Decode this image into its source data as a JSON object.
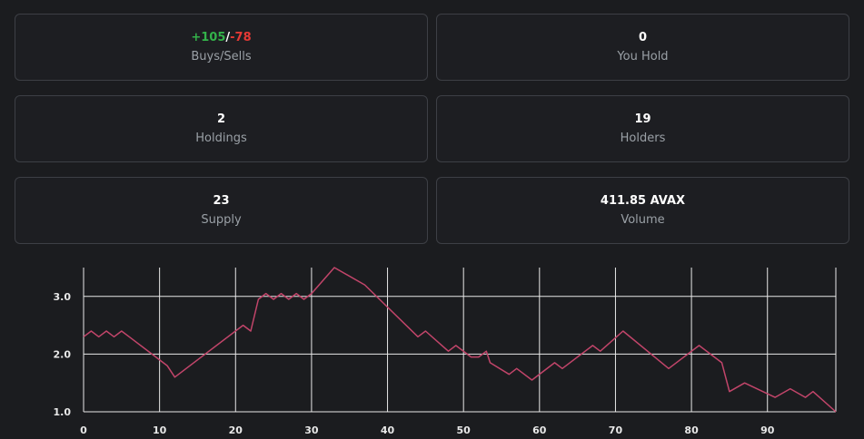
{
  "stats": {
    "trades": {
      "buys": "+105",
      "separator": "/",
      "sells": "-78",
      "label": "Buys/Sells"
    },
    "you_hold": {
      "value": "0",
      "label": "You Hold"
    },
    "holdings": {
      "value": "2",
      "label": "Holdings"
    },
    "holders": {
      "value": "19",
      "label": "Holders"
    },
    "supply": {
      "value": "23",
      "label": "Supply"
    },
    "volume": {
      "value": "411.85 AVAX",
      "label": "Volume"
    }
  },
  "colors": {
    "buy": "#33b24a",
    "sell": "#e53935",
    "line": "#c2456a",
    "grid": "#e8e8e8"
  },
  "chart_data": {
    "type": "line",
    "title": "",
    "xlabel": "",
    "ylabel": "",
    "xlim": [
      0,
      99
    ],
    "ylim": [
      1.0,
      3.5
    ],
    "x_ticks": [
      0,
      10,
      20,
      30,
      40,
      50,
      60,
      70,
      80,
      90
    ],
    "y_ticks": [
      1.0,
      2.0,
      3.0
    ],
    "y_tick_labels": [
      "1.0",
      "2.0",
      "3.0"
    ],
    "grid": true,
    "legend": "none",
    "series": [
      {
        "points": [
          [
            0,
            2.3
          ],
          [
            1,
            2.4
          ],
          [
            2,
            2.3
          ],
          [
            3,
            2.4
          ],
          [
            4,
            2.3
          ],
          [
            5,
            2.4
          ],
          [
            6,
            2.3
          ],
          [
            11,
            1.8
          ],
          [
            12,
            1.6
          ],
          [
            21,
            2.5
          ],
          [
            22,
            2.4
          ],
          [
            23,
            2.95
          ],
          [
            24,
            3.05
          ],
          [
            25,
            2.95
          ],
          [
            26,
            3.05
          ],
          [
            27,
            2.95
          ],
          [
            28,
            3.05
          ],
          [
            29,
            2.95
          ],
          [
            30,
            3.05
          ],
          [
            33,
            3.5
          ],
          [
            37,
            3.2
          ],
          [
            44,
            2.3
          ],
          [
            45,
            2.4
          ],
          [
            48,
            2.05
          ],
          [
            49,
            2.15
          ],
          [
            51,
            1.95
          ],
          [
            52,
            1.95
          ],
          [
            53,
            2.05
          ],
          [
            53.5,
            1.85
          ],
          [
            56,
            1.65
          ],
          [
            57,
            1.75
          ],
          [
            59,
            1.55
          ],
          [
            62,
            1.85
          ],
          [
            63,
            1.75
          ],
          [
            67,
            2.15
          ],
          [
            68,
            2.05
          ],
          [
            71,
            2.4
          ],
          [
            77,
            1.75
          ],
          [
            81,
            2.15
          ],
          [
            84,
            1.85
          ],
          [
            85,
            1.35
          ],
          [
            87,
            1.5
          ],
          [
            91,
            1.25
          ],
          [
            93,
            1.4
          ],
          [
            95,
            1.25
          ],
          [
            96,
            1.35
          ],
          [
            99,
            1.0
          ]
        ]
      }
    ]
  }
}
